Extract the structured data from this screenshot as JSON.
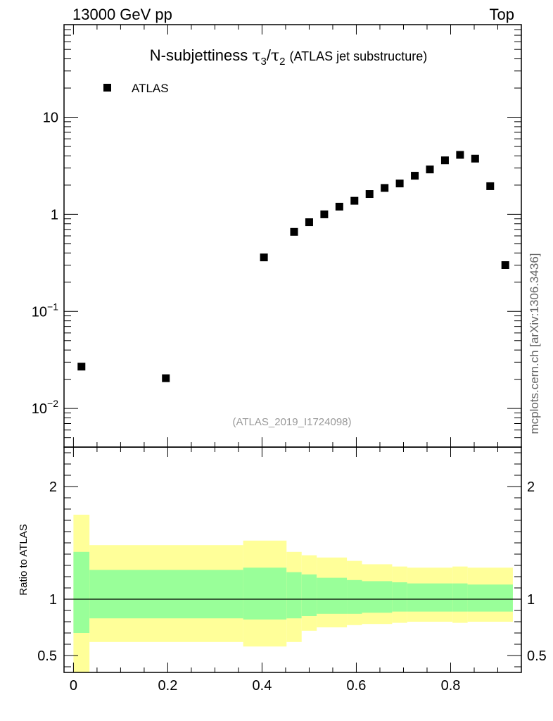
{
  "header": {
    "left": "13000 GeV pp",
    "right": "Top"
  },
  "side_label": "mcplots.cern.ch [arXiv:1306.3436]",
  "watermark": "(ATLAS_2019_I1724098)",
  "colors": {
    "data": "#000000",
    "band_inner": "#99ff99",
    "band_outer": "#ffff99",
    "watermark": "#999999"
  },
  "chart_data": [
    {
      "type": "scatter",
      "title_main": "N-subjettiness ",
      "title_tau_a": "τ",
      "title_sub_a": "3",
      "title_slash": "/",
      "title_tau_b": "τ",
      "title_sub_b": "2",
      "title_suffix": "(ATLAS jet substructure)",
      "yscale": "log",
      "xlim": [
        -0.02,
        0.95
      ],
      "ylim": [
        0.004,
        90
      ],
      "legend": [
        {
          "label": "ATLAS",
          "marker": "square"
        }
      ],
      "legend_position": "top-left",
      "yticks": [
        {
          "value": 10,
          "label": "10"
        },
        {
          "value": 1,
          "label": "1"
        },
        {
          "value": 0.1,
          "base": "10",
          "exp": "−1"
        },
        {
          "value": 0.01,
          "base": "10",
          "exp": "−2"
        }
      ],
      "series": [
        {
          "name": "ATLAS",
          "x": [
            0.017,
            0.196,
            0.404,
            0.468,
            0.5,
            0.532,
            0.564,
            0.596,
            0.628,
            0.66,
            0.692,
            0.724,
            0.756,
            0.788,
            0.82,
            0.852,
            0.884,
            0.916
          ],
          "y": [
            0.027,
            0.0205,
            0.36,
            0.66,
            0.83,
            1.0,
            1.2,
            1.38,
            1.62,
            1.87,
            2.08,
            2.5,
            2.9,
            3.6,
            4.1,
            3.75,
            1.95,
            0.3
          ]
        }
      ]
    },
    {
      "type": "area",
      "ylabel": "Ratio to ATLAS",
      "xlim": [
        -0.02,
        0.95
      ],
      "ylim": [
        0.35,
        2.35
      ],
      "reference_line": 1,
      "xticks": [
        {
          "value": 0,
          "label": "0"
        },
        {
          "value": 0.2,
          "label": "0.2"
        },
        {
          "value": 0.4,
          "label": "0.4"
        },
        {
          "value": 0.6,
          "label": "0.6"
        },
        {
          "value": 0.8,
          "label": "0.8"
        }
      ],
      "yticks": [
        {
          "value": 2,
          "label": "2"
        },
        {
          "value": 1,
          "label": "1"
        },
        {
          "value": 0.5,
          "label": "0.5"
        }
      ],
      "bins": [
        {
          "x0": 0.0,
          "x1": 0.034,
          "outer_lo": 0.3,
          "outer_hi": 1.75,
          "inner_lo": 0.7,
          "inner_hi": 1.42
        },
        {
          "x0": 0.034,
          "x1": 0.36,
          "outer_lo": 0.62,
          "outer_hi": 1.48,
          "inner_lo": 0.83,
          "inner_hi": 1.26
        },
        {
          "x0": 0.36,
          "x1": 0.452,
          "outer_lo": 0.58,
          "outer_hi": 1.52,
          "inner_lo": 0.82,
          "inner_hi": 1.28
        },
        {
          "x0": 0.452,
          "x1": 0.484,
          "outer_lo": 0.62,
          "outer_hi": 1.42,
          "inner_lo": 0.83,
          "inner_hi": 1.24
        },
        {
          "x0": 0.484,
          "x1": 0.516,
          "outer_lo": 0.72,
          "outer_hi": 1.39,
          "inner_lo": 0.85,
          "inner_hi": 1.22
        },
        {
          "x0": 0.516,
          "x1": 0.58,
          "outer_lo": 0.75,
          "outer_hi": 1.37,
          "inner_lo": 0.87,
          "inner_hi": 1.19
        },
        {
          "x0": 0.58,
          "x1": 0.612,
          "outer_lo": 0.77,
          "outer_hi": 1.34,
          "inner_lo": 0.87,
          "inner_hi": 1.17
        },
        {
          "x0": 0.612,
          "x1": 0.676,
          "outer_lo": 0.78,
          "outer_hi": 1.31,
          "inner_lo": 0.88,
          "inner_hi": 1.16
        },
        {
          "x0": 0.676,
          "x1": 0.708,
          "outer_lo": 0.79,
          "outer_hi": 1.29,
          "inner_lo": 0.89,
          "inner_hi": 1.15
        },
        {
          "x0": 0.708,
          "x1": 0.804,
          "outer_lo": 0.8,
          "outer_hi": 1.28,
          "inner_lo": 0.89,
          "inner_hi": 1.14
        },
        {
          "x0": 0.804,
          "x1": 0.836,
          "outer_lo": 0.79,
          "outer_hi": 1.29,
          "inner_lo": 0.89,
          "inner_hi": 1.14
        },
        {
          "x0": 0.836,
          "x1": 0.932,
          "outer_lo": 0.8,
          "outer_hi": 1.28,
          "inner_lo": 0.89,
          "inner_hi": 1.13
        }
      ]
    }
  ]
}
